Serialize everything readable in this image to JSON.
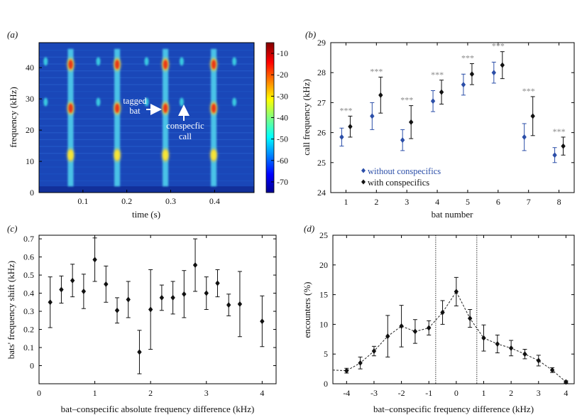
{
  "chart_data": [
    {
      "panel": "(a)",
      "type": "heatmap",
      "xlabel": "time (s)",
      "ylabel": "frequency (kHz)",
      "xlim": [
        0,
        0.49
      ],
      "ylim": [
        0,
        48
      ],
      "xticks": [
        0.1,
        0.2,
        0.3,
        0.4
      ],
      "yticks": [
        0,
        10,
        20,
        30,
        40
      ],
      "colorbar": {
        "ticks": [
          -10,
          -20,
          -30,
          -40,
          -50,
          -60,
          -70
        ],
        "range": [
          -75,
          -5
        ]
      },
      "bat_call_times": [
        0.072,
        0.178,
        0.288,
        0.398
      ],
      "conspecific_call_times": [
        0.015,
        0.135,
        0.245,
        0.325,
        0.445
      ],
      "harmonics_khz": [
        12,
        27,
        41
      ],
      "conspecific_freqs_khz": [
        42,
        29
      ],
      "annotations": [
        {
          "text": "tagged",
          "x": 0.22,
          "y": 28
        },
        {
          "text": "bat",
          "x": 0.22,
          "y": 25
        },
        {
          "text": "conspecfic",
          "x": 0.33,
          "y": 20
        },
        {
          "text": "call",
          "x": 0.33,
          "y": 16
        }
      ]
    },
    {
      "panel": "(b)",
      "type": "scatter",
      "xlabel": "bat number",
      "ylabel": "call frequency (kHz)",
      "xlim": [
        0.5,
        8.5
      ],
      "ylim": [
        24,
        29
      ],
      "categories": [
        1,
        2,
        3,
        4,
        5,
        6,
        7,
        8
      ],
      "series": [
        {
          "name": "without conspecifics",
          "color": "#2b4ea8",
          "values": [
            25.85,
            26.55,
            25.75,
            27.05,
            27.6,
            28.0,
            25.85,
            25.25
          ],
          "err": [
            0.3,
            0.45,
            0.35,
            0.35,
            0.35,
            0.35,
            0.45,
            0.25
          ]
        },
        {
          "name": "with conspecifics",
          "color": "#111111",
          "values": [
            26.2,
            27.25,
            26.35,
            27.35,
            27.95,
            28.25,
            26.55,
            25.55
          ],
          "err": [
            0.35,
            0.6,
            0.55,
            0.4,
            0.35,
            0.45,
            0.65,
            0.3
          ]
        }
      ],
      "significance": [
        "***",
        "***",
        "***",
        "***",
        "***",
        "***",
        "***",
        "***"
      ]
    },
    {
      "panel": "(c)",
      "type": "scatter",
      "xlabel": "bat–conspecific absolute frequency difference (kHz)",
      "ylabel": "bats' frequency shift (kHz)",
      "xlim": [
        0,
        4.25
      ],
      "ylim": [
        -0.1,
        0.72
      ],
      "xticks": [
        0,
        1,
        2,
        3,
        4
      ],
      "yticks": [
        0,
        0.1,
        0.2,
        0.3,
        0.4,
        0.5,
        0.6,
        0.7
      ],
      "x": [
        0.2,
        0.4,
        0.6,
        0.8,
        1.0,
        1.2,
        1.4,
        1.6,
        1.8,
        2.0,
        2.2,
        2.4,
        2.6,
        2.8,
        3.0,
        3.2,
        3.4,
        3.6,
        4.0
      ],
      "y": [
        0.35,
        0.42,
        0.47,
        0.41,
        0.585,
        0.45,
        0.305,
        0.365,
        0.075,
        0.31,
        0.375,
        0.375,
        0.395,
        0.555,
        0.4,
        0.455,
        0.335,
        0.34,
        0.245
      ],
      "err": [
        0.14,
        0.075,
        0.09,
        0.095,
        0.12,
        0.1,
        0.07,
        0.1,
        0.12,
        0.22,
        0.07,
        0.09,
        0.13,
        0.145,
        0.09,
        0.075,
        0.06,
        0.18,
        0.14
      ]
    },
    {
      "panel": "(d)",
      "type": "line",
      "xlabel": "bat–conspecific frequency difference (kHz)",
      "ylabel": "encounters (%)",
      "xlim": [
        -4.5,
        4.3
      ],
      "ylim": [
        0,
        25
      ],
      "xticks": [
        -4,
        -3,
        -2,
        -1,
        0,
        1,
        2,
        3,
        4
      ],
      "yticks": [
        0,
        5,
        10,
        15,
        20,
        25
      ],
      "x": [
        -4.0,
        -3.5,
        -3.0,
        -2.5,
        -2.0,
        -1.5,
        -1.0,
        -0.5,
        0.0,
        0.5,
        1.0,
        1.5,
        2.0,
        2.5,
        3.0,
        3.5,
        4.0
      ],
      "y": [
        2.2,
        3.5,
        5.5,
        8.0,
        9.7,
        8.8,
        9.4,
        12.0,
        15.5,
        11.0,
        7.7,
        6.7,
        6.0,
        5.0,
        3.9,
        2.3,
        0.3
      ],
      "err": [
        0.4,
        1.0,
        0.8,
        3.5,
        3.5,
        2.0,
        1.2,
        2.0,
        2.4,
        1.5,
        2.2,
        1.5,
        1.3,
        0.8,
        0.9,
        0.4,
        0.2
      ],
      "vlines": [
        -0.75,
        0.75
      ]
    }
  ],
  "legend": {
    "without": "without conspecifics",
    "with": "with conspecifics"
  }
}
